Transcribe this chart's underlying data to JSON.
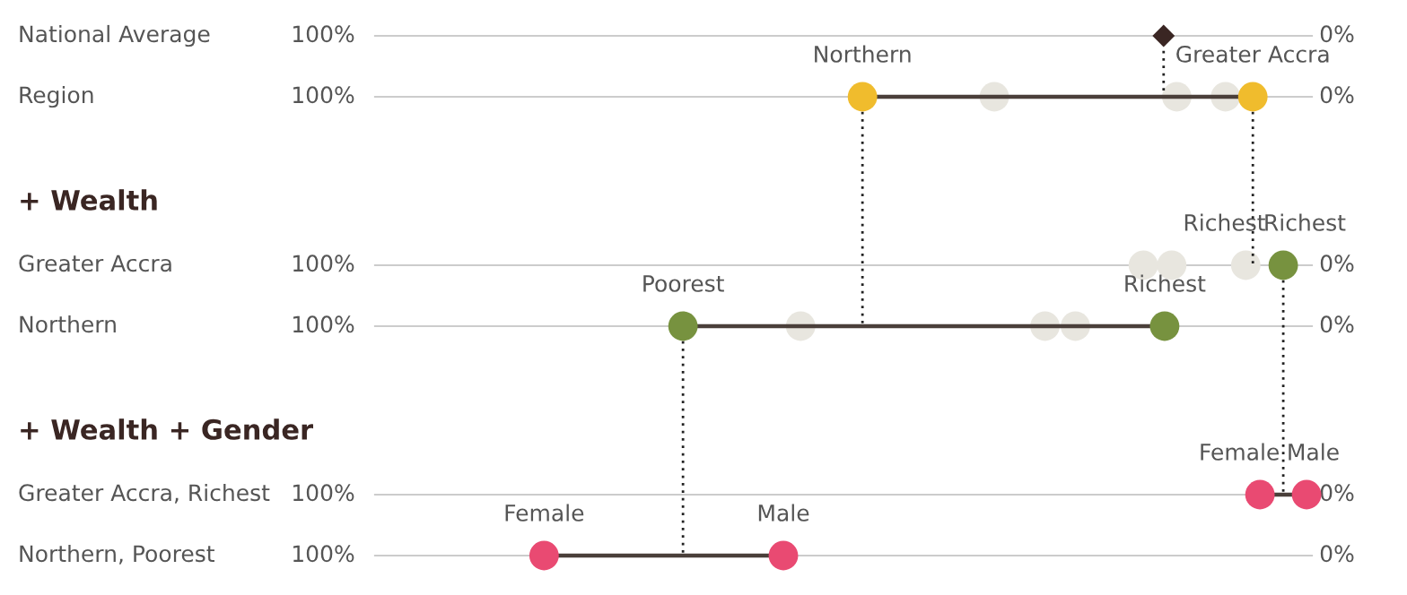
{
  "chart_data": {
    "type": "scatter",
    "orientation": "horizontal",
    "categories": [
      "National Average",
      "Region",
      "Greater Accra",
      "Northern",
      "Greater Accra, Richest",
      "Northern, Poorest"
    ],
    "xlim": [
      100,
      0
    ],
    "xticks": [
      {
        "value": 100,
        "label": "100%"
      },
      {
        "value": 0,
        "label": "0%"
      }
    ],
    "grid": "y",
    "series": [
      {
        "type": "line",
        "line_style": "dotted",
        "marker": "none",
        "color": "#222222",
        "values": [
          17.1,
          17.1,
          null,
          null,
          null,
          null
        ]
      },
      {
        "type": "line",
        "line_style": "dotted",
        "marker": "none",
        "color": "#222222",
        "values": [
          null,
          46.8,
          46.8,
          46.8,
          null,
          null
        ]
      },
      {
        "type": "line",
        "line_style": "dotted",
        "marker": "none",
        "color": "#222222",
        "values": [
          null,
          8.3,
          8.3,
          null,
          null,
          null
        ]
      },
      {
        "type": "line",
        "line_style": "dotted",
        "marker": "none",
        "color": "#222222",
        "values": [
          null,
          null,
          null,
          64.5,
          64.5,
          64.5
        ]
      },
      {
        "type": "line",
        "line_style": "dotted",
        "marker": "none",
        "color": "#222222",
        "values": [
          null,
          null,
          5.3,
          5.3,
          5.3,
          null
        ]
      },
      {
        "color": "#e8e6df",
        "values": [
          null,
          33.8,
          19.1,
          52.9,
          null,
          null
        ]
      },
      {
        "color": "#e8e6df",
        "values": [
          null,
          15.8,
          16.3,
          28.8,
          null,
          null
        ]
      },
      {
        "color": "#e8e6df",
        "values": [
          null,
          11.0,
          9.0,
          25.8,
          null,
          null
        ]
      },
      {
        "color": "#3a2623",
        "marker": "diamond",
        "values": [
          17.1,
          null,
          null,
          null,
          null,
          null
        ]
      },
      {
        "name": "Northern",
        "color": "#f0bc2d",
        "values": [
          null,
          46.8,
          null,
          null,
          null,
          null
        ]
      },
      {
        "name": "Greater Accra",
        "color": "#f0bc2d",
        "values": [
          null,
          8.3,
          null,
          null,
          null,
          null
        ]
      },
      {
        "name": "Poorest",
        "color": "#77923f",
        "values": [
          null,
          null,
          null,
          64.5,
          null,
          null
        ]
      },
      {
        "name": "Richest",
        "color": "#77923f",
        "values": [
          null,
          null,
          5.3,
          17.0,
          null,
          null
        ]
      },
      {
        "name": "Female",
        "color": "#e94a72",
        "values": [
          null,
          null,
          null,
          null,
          7.6,
          78.2
        ]
      },
      {
        "name": "Male",
        "color": "#e94a72",
        "values": [
          null,
          null,
          null,
          null,
          3.0,
          54.6
        ]
      }
    ],
    "annotations": [
      "+ Wealth",
      "+ Wealth + Gender",
      {
        "text": "Richest",
        "x": 9.0,
        "y": "Greater Accra"
      }
    ]
  }
}
